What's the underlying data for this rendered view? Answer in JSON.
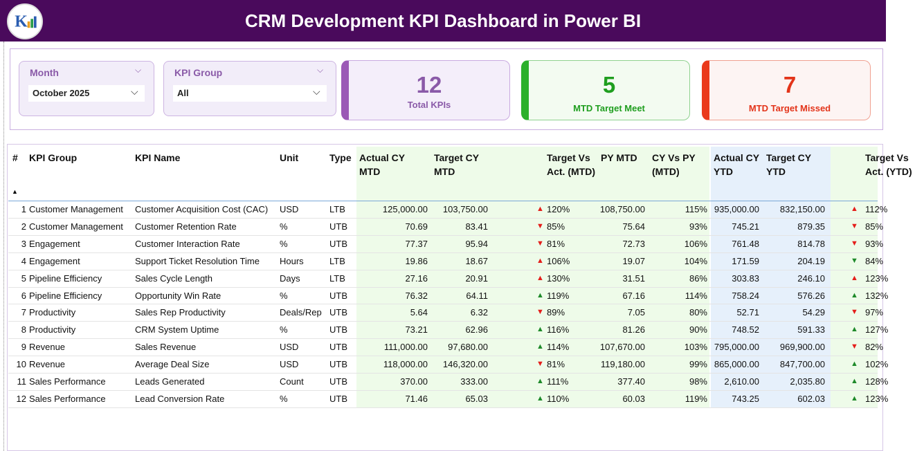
{
  "header": {
    "title": "CRM Development KPI Dashboard in Power BI"
  },
  "slicers": [
    {
      "label": "Month",
      "value": "October 2025"
    },
    {
      "label": "KPI Group",
      "value": "All"
    }
  ],
  "cards": [
    {
      "value": 12,
      "label": "Total KPIs"
    },
    {
      "value": 5,
      "label": "MTD Target Meet"
    },
    {
      "value": 7,
      "label": "MTD Target Missed"
    }
  ],
  "table": {
    "columns": [
      "#",
      "KPI Group",
      "KPI Name",
      "Unit",
      "Type",
      "Actual CY MTD",
      "Target CY MTD",
      "Target Vs Act. (MTD)",
      "PY MTD",
      "CY Vs PY (MTD)",
      "Actual CY YTD",
      "Target CY YTD",
      "Target Vs Act. (YTD)"
    ],
    "rows": [
      [
        1,
        "Customer Management",
        "Customer Acquisition Cost (CAC)",
        "USD",
        "LTB",
        "125,000.00",
        "103,750.00",
        "120%",
        "108,750.00",
        "115%",
        "935,000.00",
        "832,150.00",
        "112%"
      ],
      [
        2,
        "Customer Management",
        "Customer Retention Rate",
        "%",
        "UTB",
        "70.69",
        "83.41",
        "85%",
        "75.64",
        "93%",
        "745.21",
        "879.35",
        "85%"
      ],
      [
        3,
        "Engagement",
        "Customer Interaction Rate",
        "%",
        "UTB",
        "77.37",
        "95.94",
        "81%",
        "72.73",
        "106%",
        "761.48",
        "814.78",
        "93%"
      ],
      [
        4,
        "Engagement",
        "Support Ticket Resolution Time",
        "Hours",
        "LTB",
        "19.86",
        "18.67",
        "106%",
        "19.07",
        "104%",
        "171.59",
        "204.19",
        "84%"
      ],
      [
        5,
        "Pipeline Efficiency",
        "Sales Cycle Length",
        "Days",
        "LTB",
        "27.16",
        "20.91",
        "130%",
        "31.51",
        "86%",
        "303.83",
        "246.10",
        "123%"
      ],
      [
        6,
        "Pipeline Efficiency",
        "Opportunity Win Rate",
        "%",
        "UTB",
        "76.32",
        "64.11",
        "119%",
        "67.16",
        "114%",
        "758.24",
        "576.26",
        "132%"
      ],
      [
        7,
        "Productivity",
        "Sales Rep Productivity",
        "Deals/Rep",
        "UTB",
        "5.64",
        "6.32",
        "89%",
        "7.05",
        "80%",
        "52.71",
        "54.29",
        "97%"
      ],
      [
        8,
        "Productivity",
        "CRM System Uptime",
        "%",
        "UTB",
        "73.21",
        "62.96",
        "116%",
        "81.26",
        "90%",
        "748.52",
        "591.33",
        "127%"
      ],
      [
        9,
        "Revenue",
        "Sales Revenue",
        "USD",
        "UTB",
        "111,000.00",
        "97,680.00",
        "114%",
        "107,670.00",
        "103%",
        "795,000.00",
        "969,900.00",
        "82%"
      ],
      [
        10,
        "Revenue",
        "Average Deal Size",
        "USD",
        "UTB",
        "118,000.00",
        "146,320.00",
        "81%",
        "119,180.00",
        "99%",
        "865,000.00",
        "847,700.00",
        "102%"
      ],
      [
        11,
        "Sales Performance",
        "Leads Generated",
        "Count",
        "UTB",
        "370.00",
        "333.00",
        "111%",
        "377.40",
        "98%",
        "2,610.00",
        "2,035.80",
        "128%"
      ],
      [
        12,
        "Sales Performance",
        "Lead Conversion Rate",
        "%",
        "UTB",
        "71.46",
        "65.03",
        "110%",
        "60.03",
        "119%",
        "743.25",
        "602.03",
        "123%"
      ]
    ]
  }
}
